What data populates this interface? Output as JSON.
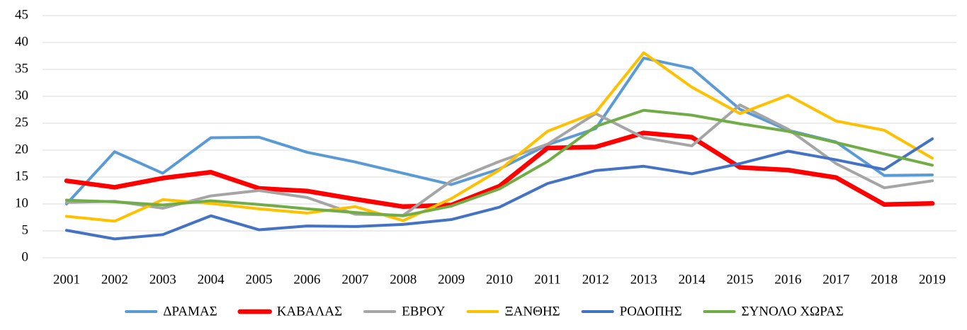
{
  "chart_data": {
    "type": "line",
    "categories": [
      "2001",
      "2002",
      "2003",
      "2004",
      "2005",
      "2006",
      "2007",
      "2008",
      "2009",
      "2010",
      "2011",
      "2012",
      "2013",
      "2014",
      "2015",
      "2016",
      "2017",
      "2018",
      "2019"
    ],
    "ylim": [
      0,
      45
    ],
    "yticks": [
      0,
      5,
      10,
      15,
      20,
      25,
      30,
      35,
      40,
      45
    ],
    "grid": true,
    "legend": "bottom",
    "series": [
      {
        "name": "ΔΡΑΜΑΣ",
        "color": "#5b9bd5",
        "values": [
          10,
          19.7,
          15.7,
          22.3,
          22.4,
          19.6,
          17.8,
          15.7,
          13.6,
          16.5,
          21,
          24,
          37.1,
          35.2,
          27.6,
          23.7,
          21.5,
          15.3,
          15.4
        ]
      },
      {
        "name": "ΚΑΒΑΛΑΣ",
        "color": "#ff0000",
        "values": [
          14.3,
          13.1,
          14.8,
          15.9,
          12.9,
          12.4,
          10.9,
          9.5,
          9.8,
          13.3,
          20.4,
          20.6,
          23.2,
          22.4,
          16.8,
          16.3,
          14.9,
          9.9,
          10.1
        ]
      },
      {
        "name": "ΕΒΡΟΥ",
        "color": "#a5a5a5",
        "values": [
          10.3,
          10.5,
          9.2,
          11.5,
          12.5,
          11.2,
          8.1,
          7.9,
          14.3,
          17.9,
          21.1,
          26.8,
          22.3,
          20.8,
          28.4,
          23.9,
          17.5,
          13,
          14.3
        ]
      },
      {
        "name": "ΞΑΝΘΗΣ",
        "color": "#ffc000",
        "values": [
          7.7,
          6.8,
          10.8,
          10.1,
          9.1,
          8.3,
          9.5,
          6.9,
          11,
          16.3,
          23.5,
          27,
          38.1,
          31.7,
          26.8,
          30.2,
          25.4,
          23.7,
          18.5
        ]
      },
      {
        "name": "ΡΟΔΟΠΗΣ",
        "color": "#4472c4",
        "values": [
          5.1,
          3.5,
          4.3,
          7.8,
          5.2,
          5.9,
          5.8,
          6.2,
          7.1,
          9.4,
          13.8,
          16.2,
          17,
          15.6,
          17.5,
          19.8,
          18.2,
          16.4,
          22.1
        ]
      },
      {
        "name": "ΣΥΝΟΛΟ ΧΩΡΑΣ",
        "color": "#70ad47",
        "values": [
          10.7,
          10.4,
          9.8,
          10.6,
          9.9,
          9.1,
          8.4,
          7.8,
          9.6,
          12.8,
          17.9,
          24.4,
          27.4,
          26.5,
          24.9,
          23.5,
          21.4,
          19.3,
          17.2
        ]
      }
    ]
  }
}
